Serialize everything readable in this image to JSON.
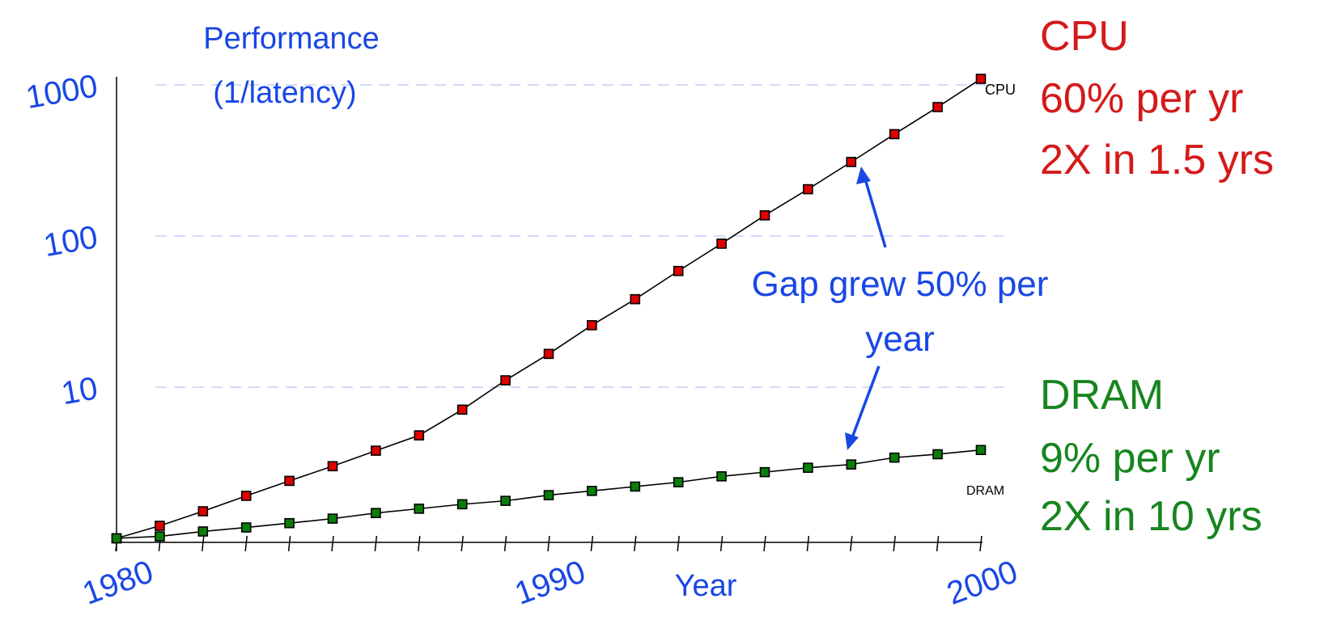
{
  "chart_data": {
    "type": "line",
    "title": "Performance\n(1/latency)",
    "title_lines": [
      "Performance",
      "(1/latency)"
    ],
    "xlabel": "Year",
    "ylabel": "",
    "y_scale": "log",
    "ylim": [
      1,
      1000
    ],
    "xlim": [
      1980,
      2000
    ],
    "y_ticks": [
      10,
      100,
      1000
    ],
    "y_tick_labels": [
      "10",
      "100",
      "1000"
    ],
    "x_tick_labels": [
      "1980",
      "1990",
      "2000"
    ],
    "x_tick_values": [
      1980,
      1990,
      2000
    ],
    "grid": "horizontal dashed",
    "x": [
      1980,
      1981,
      1982,
      1983,
      1984,
      1985,
      1986,
      1987,
      1988,
      1989,
      1990,
      1991,
      1992,
      1993,
      1994,
      1995,
      1996,
      1997,
      1998,
      1999,
      2000
    ],
    "series": [
      {
        "name": "CPU",
        "color": "#e00000",
        "values": [
          1,
          1.21,
          1.51,
          1.91,
          2.4,
          3.0,
          3.8,
          4.8,
          7.1,
          11.1,
          16.6,
          25.7,
          38.2,
          58.7,
          89,
          137,
          204,
          309,
          472,
          713,
          1096
        ]
      },
      {
        "name": "DRAM",
        "color": "#0a7d0a",
        "values": [
          1,
          1.03,
          1.11,
          1.18,
          1.26,
          1.35,
          1.47,
          1.57,
          1.68,
          1.77,
          1.93,
          2.06,
          2.2,
          2.35,
          2.57,
          2.74,
          2.93,
          3.08,
          3.42,
          3.6,
          3.84
        ]
      }
    ],
    "annotations": {
      "cpu": {
        "lines": [
          "CPU",
          "60% per yr",
          "2X in 1.5 yrs"
        ],
        "color": "#d41a1a"
      },
      "dram": {
        "lines": [
          "DRAM",
          "9% per yr",
          "2X in 10 yrs"
        ],
        "color": "#17851f"
      },
      "gap": {
        "lines": [
          "Gap grew 50% per",
          "year"
        ],
        "color": "#1947e5"
      }
    }
  }
}
